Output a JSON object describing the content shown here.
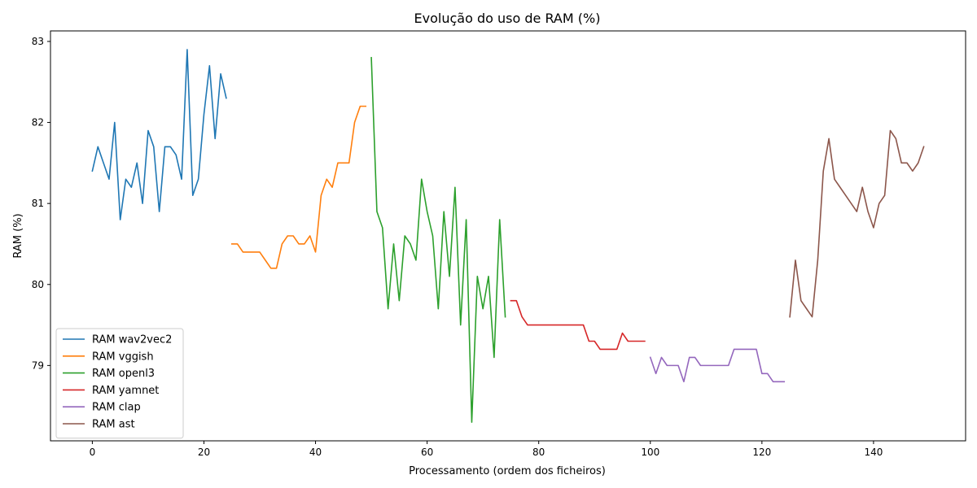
{
  "chart_data": {
    "type": "line",
    "title": "Evolução do uso de RAM (%)",
    "xlabel": "Processamento (ordem dos ficheiros)",
    "ylabel": "RAM (%)",
    "xlim": [
      -7.5,
      156.5
    ],
    "ylim": [
      78.07,
      83.13
    ],
    "xticks": [
      0,
      20,
      40,
      60,
      80,
      100,
      120,
      140
    ],
    "yticks": [
      79,
      80,
      81,
      82,
      83
    ],
    "grid": false,
    "legend_position": "lower-left",
    "series": [
      {
        "name": "RAM wav2vec2",
        "color": "#1f77b4",
        "x": [
          0,
          1,
          2,
          3,
          4,
          5,
          6,
          7,
          8,
          9,
          10,
          11,
          12,
          13,
          14,
          15,
          16,
          17,
          18,
          19,
          20,
          21,
          22,
          23,
          24
        ],
        "y": [
          81.4,
          81.7,
          81.5,
          81.3,
          82.0,
          80.8,
          81.3,
          81.2,
          81.5,
          81.0,
          81.9,
          81.7,
          80.9,
          81.7,
          81.7,
          81.6,
          81.3,
          82.9,
          81.1,
          81.3,
          82.1,
          82.7,
          81.8,
          82.6,
          82.3
        ]
      },
      {
        "name": "RAM vggish",
        "color": "#ff7f0e",
        "x": [
          25,
          26,
          27,
          28,
          29,
          30,
          31,
          32,
          33,
          34,
          35,
          36,
          37,
          38,
          39,
          40,
          41,
          42,
          43,
          44,
          45,
          46,
          47,
          48,
          49
        ],
        "y": [
          80.5,
          80.5,
          80.4,
          80.4,
          80.4,
          80.4,
          80.3,
          80.2,
          80.2,
          80.5,
          80.6,
          80.6,
          80.5,
          80.5,
          80.6,
          80.4,
          81.1,
          81.3,
          81.2,
          81.5,
          81.5,
          81.5,
          82.0,
          82.2,
          82.2
        ]
      },
      {
        "name": "RAM openl3",
        "color": "#2ca02c",
        "x": [
          50,
          51,
          52,
          53,
          54,
          55,
          56,
          57,
          58,
          59,
          60,
          61,
          62,
          63,
          64,
          65,
          66,
          67,
          68,
          69,
          70,
          71,
          72,
          73,
          74
        ],
        "y": [
          82.8,
          80.9,
          80.7,
          79.7,
          80.5,
          79.8,
          80.6,
          80.5,
          80.3,
          81.3,
          80.9,
          80.6,
          79.7,
          80.9,
          80.1,
          81.2,
          79.5,
          80.8,
          78.3,
          80.1,
          79.7,
          80.1,
          79.1,
          80.8,
          79.6
        ]
      },
      {
        "name": "RAM yamnet",
        "color": "#d62728",
        "x": [
          75,
          76,
          77,
          78,
          79,
          80,
          81,
          82,
          83,
          84,
          85,
          86,
          87,
          88,
          89,
          90,
          91,
          92,
          93,
          94,
          95,
          96,
          97,
          98,
          99
        ],
        "y": [
          79.8,
          79.8,
          79.6,
          79.5,
          79.5,
          79.5,
          79.5,
          79.5,
          79.5,
          79.5,
          79.5,
          79.5,
          79.5,
          79.5,
          79.3,
          79.3,
          79.2,
          79.2,
          79.2,
          79.2,
          79.4,
          79.3,
          79.3,
          79.3,
          79.3
        ]
      },
      {
        "name": "RAM clap",
        "color": "#9467bd",
        "x": [
          100,
          101,
          102,
          103,
          104,
          105,
          106,
          107,
          108,
          109,
          110,
          111,
          112,
          113,
          114,
          115,
          116,
          117,
          118,
          119,
          120,
          121,
          122,
          123,
          124
        ],
        "y": [
          79.1,
          78.9,
          79.1,
          79.0,
          79.0,
          79.0,
          78.8,
          79.1,
          79.1,
          79.0,
          79.0,
          79.0,
          79.0,
          79.0,
          79.0,
          79.2,
          79.2,
          79.2,
          79.2,
          79.2,
          78.9,
          78.9,
          78.8,
          78.8,
          78.8
        ]
      },
      {
        "name": "RAM ast",
        "color": "#8c564b",
        "x": [
          125,
          126,
          127,
          128,
          129,
          130,
          131,
          132,
          133,
          134,
          135,
          136,
          137,
          138,
          139,
          140,
          141,
          142,
          143,
          144,
          145,
          146,
          147,
          148,
          149
        ],
        "y": [
          79.6,
          80.3,
          79.8,
          79.7,
          79.6,
          80.3,
          81.4,
          81.8,
          81.3,
          81.2,
          81.1,
          81.0,
          80.9,
          81.2,
          80.9,
          80.7,
          81.0,
          81.1,
          81.9,
          81.8,
          81.5,
          81.5,
          81.4,
          81.5,
          81.7
        ]
      }
    ]
  }
}
